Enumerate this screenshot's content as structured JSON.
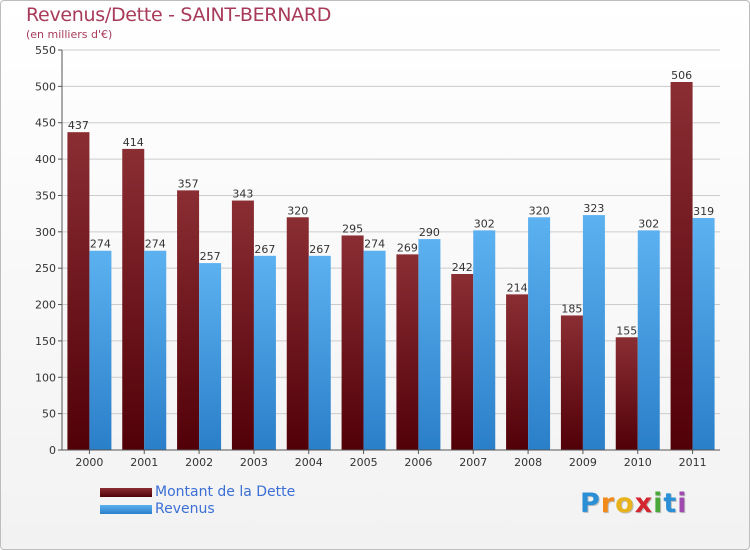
{
  "chart_data": {
    "type": "bar",
    "title": "Revenus/Dette - SAINT-BERNARD",
    "subtitle": "(en milliers d'€)",
    "categories": [
      "2000",
      "2001",
      "2002",
      "2003",
      "2004",
      "2005",
      "2006",
      "2007",
      "2008",
      "2009",
      "2010",
      "2011"
    ],
    "series": [
      {
        "name": "Montant de la Dette",
        "values": [
          437,
          414,
          357,
          343,
          320,
          295,
          269,
          242,
          214,
          185,
          155,
          506
        ],
        "color": "#6b0e14"
      },
      {
        "name": "Revenus",
        "values": [
          274,
          274,
          257,
          267,
          267,
          274,
          290,
          302,
          320,
          323,
          302,
          319
        ],
        "color": "#4ea6ea"
      }
    ],
    "ylim": [
      0,
      550
    ],
    "yticks": [
      0,
      50,
      100,
      150,
      200,
      250,
      300,
      350,
      400,
      450,
      500,
      550
    ],
    "grid": true,
    "legend_position": "bottom-left"
  },
  "brand": {
    "letters": [
      "P",
      "r",
      "o",
      "x",
      "i",
      "t",
      "i"
    ],
    "colors": [
      "#2b8fd6",
      "#f28a1a",
      "#e8b21a",
      "#d4262e",
      "#4aa83a",
      "#2b8fd6",
      "#a04ab0"
    ]
  }
}
